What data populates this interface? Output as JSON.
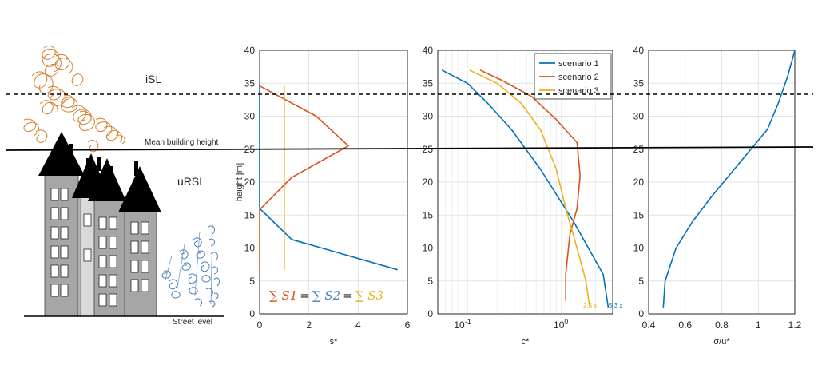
{
  "illustration": {
    "isl_label": "iSL",
    "ursl_label": "uRSL",
    "mean_height_label": "Mean building height",
    "street_label": "Street level"
  },
  "chart_data": [
    {
      "type": "line",
      "xlabel": "s*",
      "ylabel": "height [m]",
      "xlim": [
        0,
        6
      ],
      "ylim": [
        0,
        40
      ],
      "xticks": [
        "0",
        "2",
        "4",
        "6"
      ],
      "yticks": [
        "0",
        "5",
        "10",
        "15",
        "20",
        "25",
        "30",
        "35",
        "40"
      ],
      "grid": true,
      "annotation": {
        "parts": [
          "∑ S1",
          "=",
          "∑ S2",
          "=",
          "∑ S3"
        ]
      },
      "series": [
        {
          "color": "#0072BD",
          "x": [
            0,
            0,
            1.3,
            5.6
          ],
          "y": [
            35,
            16,
            11.3,
            6.7
          ]
        },
        {
          "color": "#D95319",
          "x": [
            0,
            2.3,
            3.6,
            1.3,
            0,
            0
          ],
          "y": [
            34.6,
            30,
            25.5,
            20.7,
            15.8,
            6.7
          ]
        },
        {
          "color": "#EDB120",
          "x": [
            1,
            1
          ],
          "y": [
            34.6,
            6.7
          ]
        }
      ]
    },
    {
      "type": "line",
      "xscale": "log",
      "xlabel": "c*",
      "ylabel": "",
      "xlim": [
        0.05,
        3
      ],
      "ylim": [
        0,
        40
      ],
      "xticks": [
        "10^-1",
        "10^0"
      ],
      "yticks": [
        "0",
        "5",
        "10",
        "15",
        "20",
        "25",
        "30",
        "35",
        "40"
      ],
      "grid": true,
      "legend": {
        "position": "top-right",
        "entries": [
          "scenario 1",
          "scenario 2",
          "scenario 3"
        ]
      },
      "annotations": [
        {
          "text": "2.5 x",
          "color": "#EDB120"
        },
        {
          "text": "5.3 x",
          "color": "#0072BD"
        }
      ],
      "series": [
        {
          "name": "scenario 1",
          "color": "#0072BD",
          "x": [
            0.055,
            0.1,
            0.16,
            0.28,
            0.55,
            1.2,
            2.4,
            2.7
          ],
          "y": [
            37,
            35,
            32,
            28,
            22,
            14,
            6,
            1
          ]
        },
        {
          "name": "scenario 2",
          "color": "#D95319",
          "x": [
            0.135,
            0.22,
            0.45,
            0.8,
            1.3,
            1.4,
            1.3,
            1.1,
            1.0,
            1.0
          ],
          "y": [
            37,
            35.5,
            33,
            29.5,
            26,
            21,
            16,
            12,
            6,
            2
          ]
        },
        {
          "name": "scenario 3",
          "color": "#EDB120",
          "x": [
            0.105,
            0.2,
            0.35,
            0.55,
            0.8,
            1.0,
            1.3,
            1.6,
            1.75
          ],
          "y": [
            37,
            35,
            32,
            28,
            22,
            16,
            10,
            5,
            1
          ]
        }
      ]
    },
    {
      "type": "line",
      "xlabel": "σ/u*",
      "ylabel": "",
      "xlim": [
        0.4,
        1.2
      ],
      "ylim": [
        0,
        40
      ],
      "xticks": [
        "0.4",
        "0.6",
        "0.8",
        "1",
        "1.2"
      ],
      "yticks": [
        "0",
        "5",
        "10",
        "15",
        "20",
        "25",
        "30",
        "35",
        "40"
      ],
      "grid": true,
      "series": [
        {
          "color": "#0072BD",
          "x": [
            0.48,
            0.49,
            0.55,
            0.64,
            0.75,
            0.87,
            0.96,
            1.05,
            1.11,
            1.16,
            1.2
          ],
          "y": [
            1,
            5,
            10,
            14,
            18,
            22,
            25,
            28,
            32,
            36,
            40
          ]
        }
      ]
    }
  ]
}
